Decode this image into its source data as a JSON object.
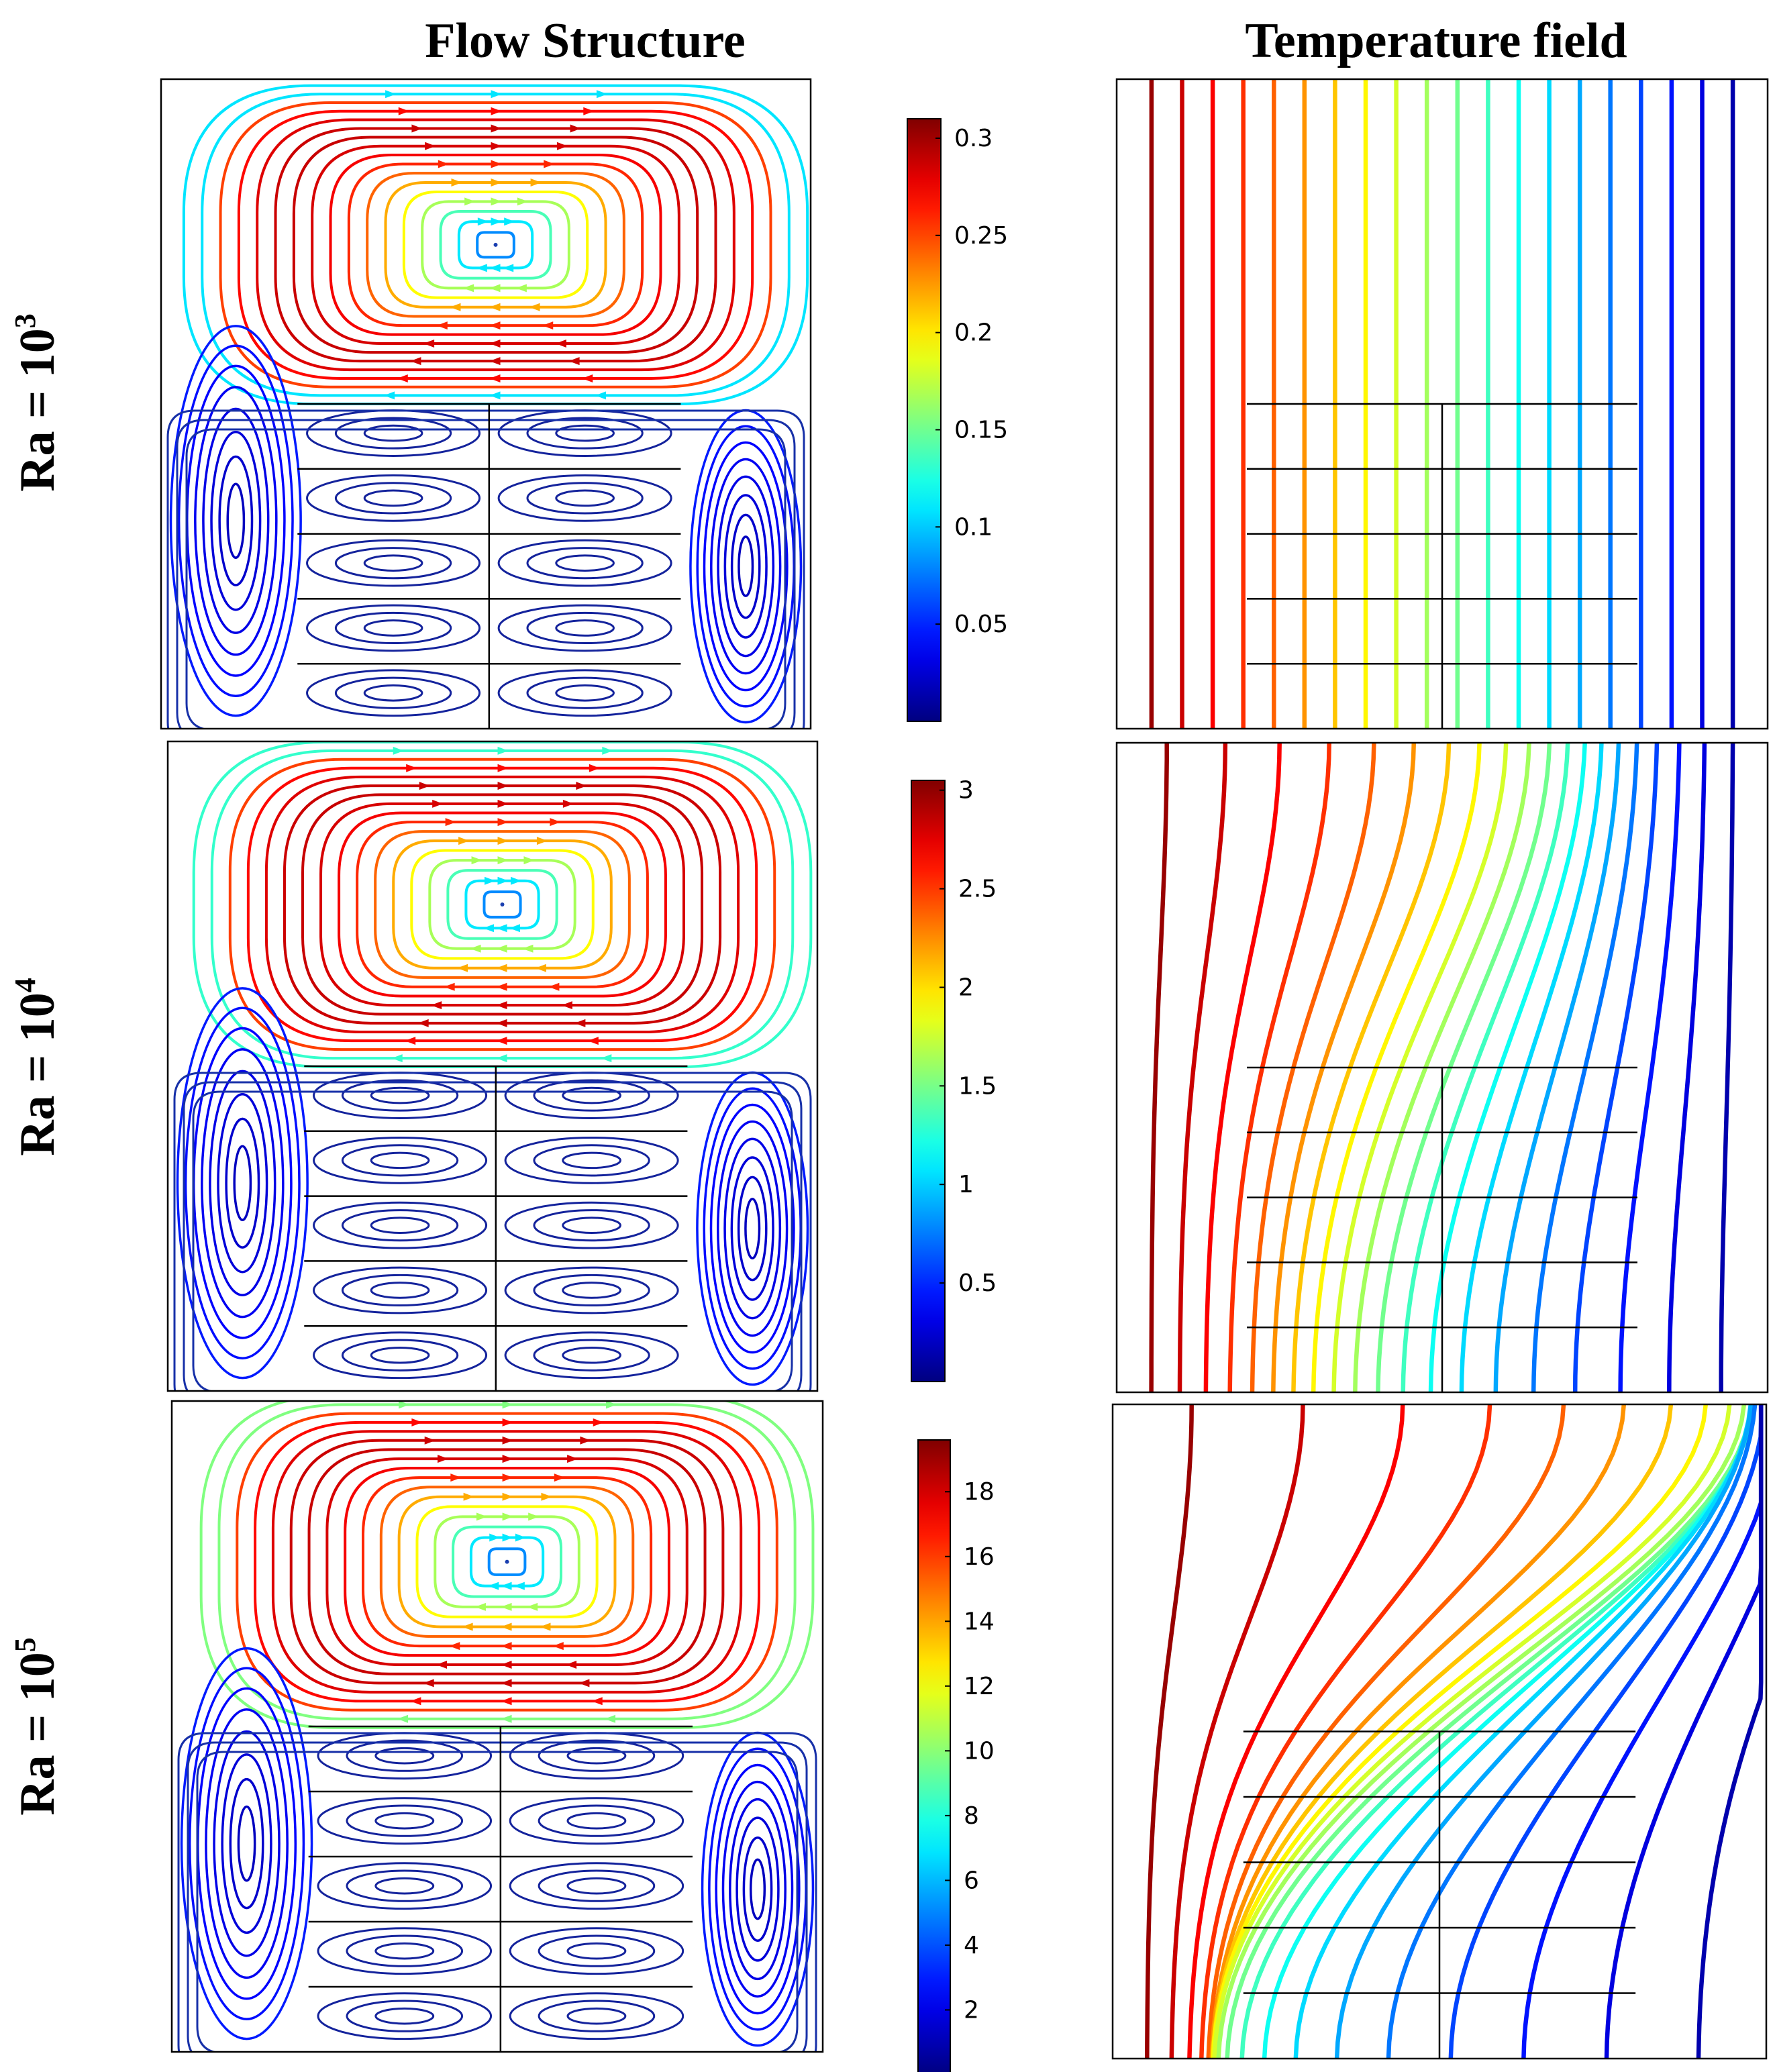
{
  "headers": {
    "flow": "Flow Structure",
    "temperature": "Temperature field"
  },
  "colormap": "jet",
  "rows": [
    {
      "label_prefix": "Ra = 10",
      "label_exponent": "3",
      "colorbar": {
        "min": 0.0,
        "max": 0.31,
        "ticks": [
          "0.3",
          "0.25",
          "0.2",
          "0.15",
          "0.1",
          "0.05"
        ],
        "tick_values": [
          0.3,
          0.25,
          0.2,
          0.15,
          0.1,
          0.05
        ]
      },
      "isotherm_distortion": 0.0
    },
    {
      "label_prefix": "Ra = 10",
      "label_exponent": "4",
      "colorbar": {
        "min": 0.0,
        "max": 3.05,
        "ticks": [
          "3",
          "2.5",
          "2",
          "1.5",
          "1",
          "0.5"
        ],
        "tick_values": [
          3,
          2.5,
          2,
          1.5,
          1,
          0.5
        ]
      },
      "isotherm_distortion": 0.35
    },
    {
      "label_prefix": "Ra = 10",
      "label_exponent": "5",
      "colorbar": {
        "min": 0.0,
        "max": 19.6,
        "ticks": [
          "18",
          "16",
          "14",
          "12",
          "10",
          "8",
          "6",
          "4",
          "2"
        ],
        "tick_values": [
          18,
          16,
          14,
          12,
          10,
          8,
          6,
          4,
          2
        ]
      },
      "isotherm_distortion": 1.0
    }
  ],
  "isotherm_count": 20,
  "fins": {
    "count": 5,
    "vertical_divider": true
  }
}
